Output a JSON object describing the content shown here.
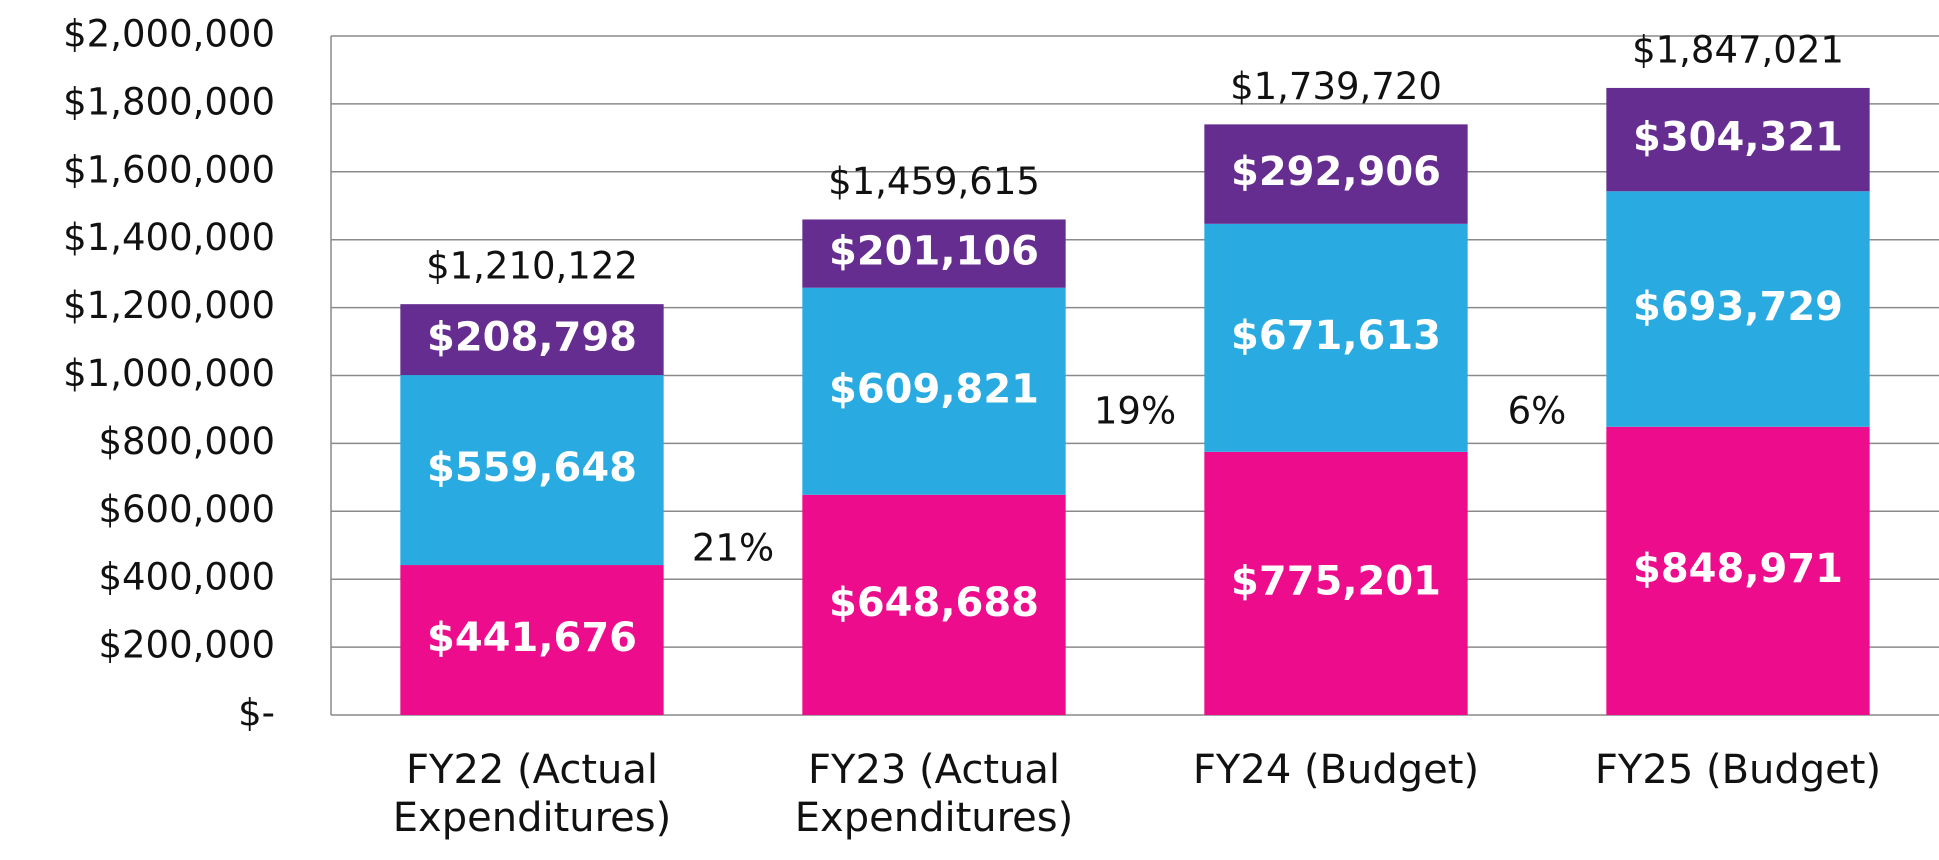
{
  "chart_data": {
    "type": "stacked_bar",
    "categories": [
      "FY22 (Actual Expenditures)",
      "FY23 (Actual Expenditures)",
      "FY24 (Budget)",
      "FY25 (Budget)"
    ],
    "series": [
      {
        "color": "#ec0c8c",
        "values": [
          441676,
          648688,
          775201,
          848971
        ],
        "value_labels": [
          "$441,676",
          "$648,688",
          "$775,201",
          "$848,971"
        ]
      },
      {
        "color": "#29abe2",
        "values": [
          559648,
          609821,
          671613,
          693729
        ],
        "value_labels": [
          "$559,648",
          "$609,821",
          "$671,613",
          "$693,729"
        ]
      },
      {
        "color": "#662d91",
        "values": [
          208798,
          201106,
          292906,
          304321
        ],
        "value_labels": [
          "$208,798",
          "$201,106",
          "$292,906",
          "$304,321"
        ]
      }
    ],
    "totals": {
      "values": [
        1210122,
        1459615,
        1739720,
        1847021
      ],
      "value_labels": [
        "$1,210,122",
        "$1,459,615",
        "$1,739,720",
        "$1,847,021"
      ]
    },
    "growth": {
      "values": [
        21,
        19,
        6
      ],
      "value_labels": [
        "21%",
        "19%",
        "6%"
      ]
    },
    "ylim": [
      0,
      2000000
    ],
    "yticks": [
      {
        "value": 0,
        "label": "$-"
      },
      {
        "value": 200000,
        "label": "$200,000"
      },
      {
        "value": 400000,
        "label": "$400,000"
      },
      {
        "value": 600000,
        "label": "$600,000"
      },
      {
        "value": 800000,
        "label": "$800,000"
      },
      {
        "value": 1000000,
        "label": "$1,000,000"
      },
      {
        "value": 1200000,
        "label": "$1,200,000"
      },
      {
        "value": 1400000,
        "label": "$1,400,000"
      },
      {
        "value": 1600000,
        "label": "$1,600,000"
      },
      {
        "value": 1800000,
        "label": "$1,800,000"
      },
      {
        "value": 2000000,
        "label": "$2,000,000"
      }
    ],
    "grid": true
  }
}
